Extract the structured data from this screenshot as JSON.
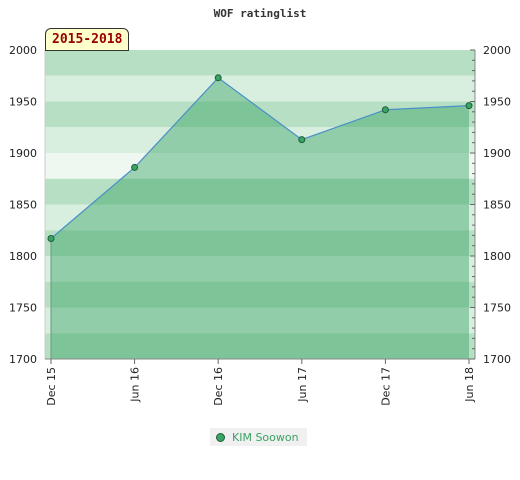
{
  "period_label": "2015-2018",
  "chart_data": {
    "type": "area",
    "title": "WOF ratinglist",
    "xlabel": "",
    "ylabel": "",
    "categories": [
      "Dec 15",
      "Jun 16",
      "Dec 16",
      "Jun 17",
      "Dec 17",
      "Jun 18"
    ],
    "series": [
      {
        "name": "KIM Soowon",
        "values": [
          1817,
          1886,
          1973,
          1913,
          1942,
          1946
        ]
      }
    ],
    "ylim": [
      1700,
      2000
    ],
    "yticks": [
      1700,
      1750,
      1800,
      1850,
      1900,
      1950,
      2000
    ],
    "grid": true,
    "legend": "bottom-center",
    "colors": {
      "line": "#4a90c8",
      "area": "#3aa365",
      "marker_fill": "#3aa365",
      "marker_stroke": "#1f5f3a",
      "band_light": "#b7dfc3",
      "band_lighter": "#d8eedf",
      "band_lightest": "#eef7f0",
      "period_bg": "#ffffcc",
      "period_text": "#990000",
      "legend_text": "#3aa365"
    }
  }
}
